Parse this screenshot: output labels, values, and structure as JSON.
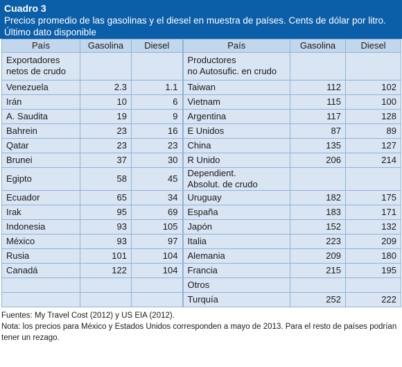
{
  "title": "Cuadro 3",
  "subtitle": "Precios promedio de las gasolinas y el diesel en muestra de países. Cents de dólar por litro. Último dato disponible",
  "headers": [
    "País",
    "Gasolina",
    "Diesel",
    "País",
    "Gasolina",
    "Diesel"
  ],
  "rows": [
    [
      "Exportadores\nnetos de crudo",
      "",
      "",
      "Productores\nno Autosufic. en crudo",
      "",
      ""
    ],
    [
      "Venezuela",
      "2.3",
      "1.1",
      "Taiwan",
      "112",
      "102"
    ],
    [
      "Irán",
      "10",
      "6",
      "Vietnam",
      "115",
      "100"
    ],
    [
      "A. Saudita",
      "19",
      "9",
      "Argentina",
      "117",
      "128"
    ],
    [
      "Bahrein",
      "23",
      "16",
      "E Unidos",
      "87",
      "89"
    ],
    [
      "Qatar",
      "23",
      "23",
      "China",
      "135",
      "127"
    ],
    [
      "Brunei",
      "37",
      "30",
      "R Unido",
      "206",
      "214"
    ],
    [
      "Egipto",
      "58",
      "45",
      "Dependient.\nAbsolut. de crudo",
      "",
      ""
    ],
    [
      "Ecuador",
      "65",
      "34",
      "Uruguay",
      "182",
      "175"
    ],
    [
      "Irak",
      "95",
      "69",
      "España",
      "183",
      "171"
    ],
    [
      "Indonesia",
      "93",
      "105",
      "Japón",
      "152",
      "132"
    ],
    [
      "México",
      "93",
      "97",
      "Italia",
      "223",
      "209"
    ],
    [
      "Rusia",
      "101",
      "104",
      "Alemania",
      "209",
      "180"
    ],
    [
      "Canadá",
      "122",
      "104",
      "Francia",
      "215",
      "195"
    ],
    [
      "",
      "",
      "",
      "Otros",
      "",
      ""
    ],
    [
      "",
      "",
      "",
      "Turquía",
      "252",
      "222"
    ]
  ],
  "footnotes": {
    "source": "Fuentes: My Travel Cost (2012) y US EIA (2012).",
    "note": "Nota: los precios para México y Estados Unidos corresponden a mayo de 2013. Para el resto de países podrían tener un rezago."
  }
}
